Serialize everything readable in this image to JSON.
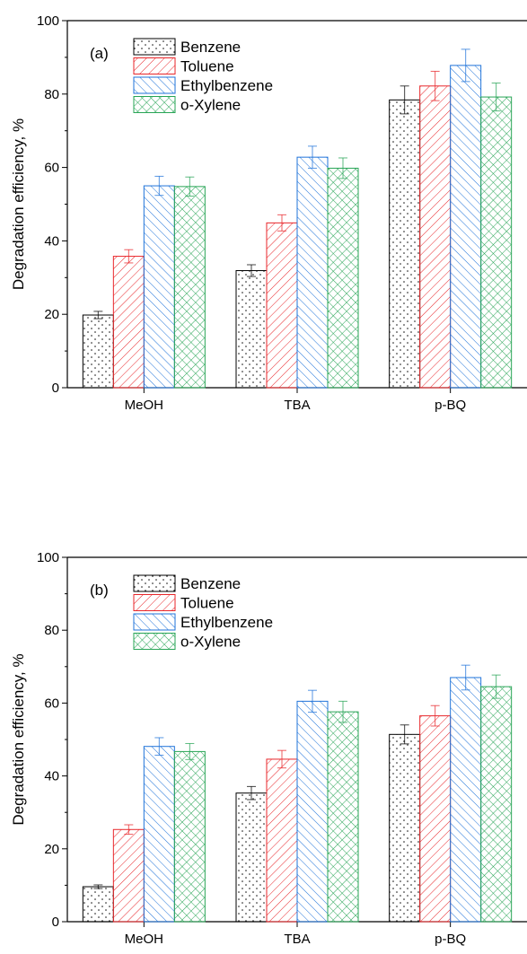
{
  "chart_data": [
    {
      "type": "bar",
      "panel_label": "(a)",
      "ylabel": "Degradation efficiency, %",
      "ylim": [
        0,
        100
      ],
      "yticks": [
        "0",
        "20",
        "40",
        "60",
        "80",
        "100"
      ],
      "categories": [
        "MeOH",
        "TBA",
        "p-BQ"
      ],
      "legend_position": "top-left",
      "series": [
        {
          "name": "Benzene",
          "values": [
            19.8,
            31.9,
            78.4
          ],
          "errors": [
            1.0,
            1.6,
            3.8
          ],
          "color": "#000000",
          "pattern": "dots"
        },
        {
          "name": "Toluene",
          "values": [
            35.8,
            44.9,
            82.2
          ],
          "errors": [
            1.8,
            2.2,
            4.0
          ],
          "color": "#e8262a",
          "pattern": "diag-up"
        },
        {
          "name": "Ethylbenzene",
          "values": [
            55.0,
            62.8,
            87.8
          ],
          "errors": [
            2.6,
            3.0,
            4.4
          ],
          "color": "#1f73d9",
          "pattern": "diag-down"
        },
        {
          "name": "o-Xylene",
          "values": [
            54.8,
            59.8,
            79.2
          ],
          "errors": [
            2.6,
            2.8,
            3.8
          ],
          "color": "#27a455",
          "pattern": "cross"
        }
      ]
    },
    {
      "type": "bar",
      "panel_label": "(b)",
      "ylabel": "Degradation efficiency, %",
      "ylim": [
        0,
        100
      ],
      "yticks": [
        "0",
        "20",
        "40",
        "60",
        "80",
        "100"
      ],
      "categories": [
        "MeOH",
        "TBA",
        "p-BQ"
      ],
      "legend_position": "top-left",
      "series": [
        {
          "name": "Benzene",
          "values": [
            9.6,
            35.3,
            51.4
          ],
          "errors": [
            0.5,
            1.8,
            2.6
          ],
          "color": "#000000",
          "pattern": "dots"
        },
        {
          "name": "Toluene",
          "values": [
            25.3,
            44.6,
            56.5
          ],
          "errors": [
            1.3,
            2.4,
            2.8
          ],
          "color": "#e8262a",
          "pattern": "diag-up"
        },
        {
          "name": "Ethylbenzene",
          "values": [
            48.1,
            60.5,
            67.0
          ],
          "errors": [
            2.4,
            3.0,
            3.4
          ],
          "color": "#1f73d9",
          "pattern": "diag-down"
        },
        {
          "name": "o-Xylene",
          "values": [
            46.7,
            57.6,
            64.5
          ],
          "errors": [
            2.2,
            2.9,
            3.2
          ],
          "color": "#27a455",
          "pattern": "cross"
        }
      ]
    }
  ]
}
